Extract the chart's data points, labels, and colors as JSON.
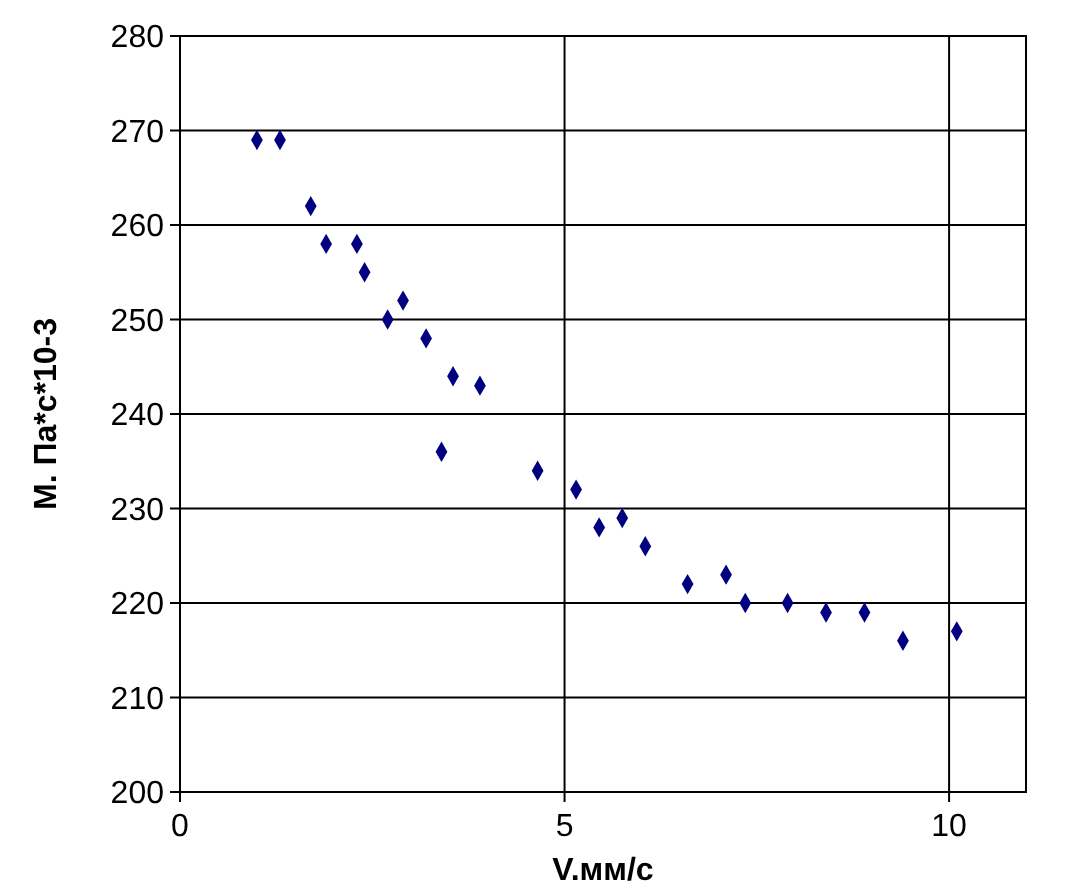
{
  "chart_data": {
    "type": "scatter",
    "xlabel": "V.мм/с",
    "ylabel": "M. Па*с*10-3",
    "x": [
      1.0,
      1.3,
      1.7,
      1.9,
      2.3,
      2.4,
      2.7,
      2.9,
      3.2,
      3.4,
      3.55,
      3.9,
      4.65,
      5.15,
      5.45,
      5.75,
      6.05,
      6.6,
      7.1,
      7.35,
      7.9,
      8.4,
      8.9,
      9.4,
      10.1
    ],
    "series": [
      {
        "color": "#000080",
        "values": [
          269,
          269,
          262,
          258,
          258,
          255,
          250,
          252,
          248,
          236,
          244,
          243,
          234,
          232,
          228,
          229,
          226,
          222,
          223,
          220,
          220,
          219,
          219,
          216,
          217
        ]
      }
    ],
    "xlim": [
      0,
      11
    ],
    "xticks": [
      0,
      5,
      10
    ],
    "ylim": [
      200,
      280
    ],
    "yticks": [
      200,
      210,
      220,
      230,
      240,
      250,
      260,
      270,
      280
    ],
    "grid": true,
    "marker": "diamond"
  }
}
